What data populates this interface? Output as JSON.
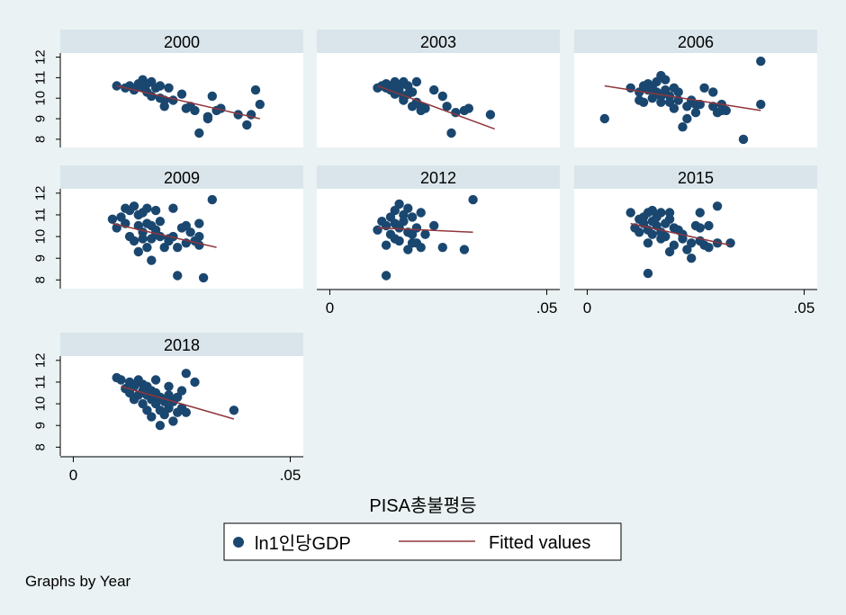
{
  "colors": {
    "background": "#eaf2f3",
    "panel": "#ffffff",
    "strip": "#d9e5eb",
    "marker": "#1a476f",
    "fit_line": "#90353b",
    "axis": "#000000"
  },
  "chart_data": {
    "type": "scatter",
    "xlabel": "PISA총불평등",
    "ylabel": "",
    "x_ticks": [
      "0",
      ".05"
    ],
    "x_tick_values": [
      0,
      0.05
    ],
    "y_ticks": [
      "8",
      "9",
      "10",
      "11",
      "12"
    ],
    "y_tick_values": [
      8,
      9,
      10,
      11,
      12
    ],
    "xlim": [
      -0.003,
      0.053
    ],
    "ylim": [
      7.6,
      12.2
    ],
    "legend": {
      "position": "bottom",
      "entries": [
        "ln1인당GDP",
        "Fitted values"
      ]
    },
    "note": "Graphs by Year",
    "panels": [
      {
        "title": "2000",
        "points": [
          [
            0.01,
            10.6
          ],
          [
            0.012,
            10.5
          ],
          [
            0.013,
            10.6
          ],
          [
            0.014,
            10.4
          ],
          [
            0.015,
            10.7
          ],
          [
            0.016,
            10.9
          ],
          [
            0.016,
            10.5
          ],
          [
            0.017,
            10.7
          ],
          [
            0.017,
            10.3
          ],
          [
            0.018,
            10.8
          ],
          [
            0.018,
            10.1
          ],
          [
            0.019,
            10.5
          ],
          [
            0.02,
            10.6
          ],
          [
            0.02,
            10.0
          ],
          [
            0.021,
            9.9
          ],
          [
            0.021,
            9.6
          ],
          [
            0.022,
            10.5
          ],
          [
            0.023,
            9.9
          ],
          [
            0.025,
            10.2
          ],
          [
            0.026,
            9.5
          ],
          [
            0.027,
            9.6
          ],
          [
            0.028,
            9.4
          ],
          [
            0.029,
            8.3
          ],
          [
            0.031,
            9.1
          ],
          [
            0.031,
            9.0
          ],
          [
            0.032,
            10.1
          ],
          [
            0.033,
            9.4
          ],
          [
            0.034,
            9.5
          ],
          [
            0.038,
            9.2
          ],
          [
            0.04,
            8.7
          ],
          [
            0.041,
            9.2
          ],
          [
            0.042,
            10.4
          ],
          [
            0.043,
            9.7
          ]
        ],
        "fit": [
          [
            0.01,
            10.6
          ],
          [
            0.043,
            9.0
          ]
        ]
      },
      {
        "title": "2003",
        "points": [
          [
            0.011,
            10.5
          ],
          [
            0.012,
            10.6
          ],
          [
            0.013,
            10.5
          ],
          [
            0.013,
            10.7
          ],
          [
            0.014,
            10.4
          ],
          [
            0.014,
            10.6
          ],
          [
            0.015,
            10.8
          ],
          [
            0.015,
            10.2
          ],
          [
            0.016,
            10.5
          ],
          [
            0.016,
            10.3
          ],
          [
            0.017,
            10.8
          ],
          [
            0.017,
            10.0
          ],
          [
            0.017,
            9.9
          ],
          [
            0.018,
            10.6
          ],
          [
            0.018,
            10.2
          ],
          [
            0.019,
            10.3
          ],
          [
            0.019,
            9.6
          ],
          [
            0.02,
            10.8
          ],
          [
            0.02,
            9.8
          ],
          [
            0.021,
            9.6
          ],
          [
            0.021,
            9.4
          ],
          [
            0.022,
            9.5
          ],
          [
            0.024,
            10.4
          ],
          [
            0.026,
            10.1
          ],
          [
            0.027,
            9.6
          ],
          [
            0.028,
            8.3
          ],
          [
            0.029,
            9.3
          ],
          [
            0.031,
            9.4
          ],
          [
            0.032,
            9.5
          ],
          [
            0.037,
            9.2
          ]
        ],
        "fit": [
          [
            0.011,
            10.6
          ],
          [
            0.038,
            8.5
          ]
        ]
      },
      {
        "title": "2006",
        "points": [
          [
            0.004,
            9.0
          ],
          [
            0.01,
            10.5
          ],
          [
            0.012,
            10.3
          ],
          [
            0.012,
            9.9
          ],
          [
            0.013,
            10.6
          ],
          [
            0.013,
            9.8
          ],
          [
            0.014,
            10.4
          ],
          [
            0.014,
            10.7
          ],
          [
            0.015,
            10.5
          ],
          [
            0.015,
            10.0
          ],
          [
            0.016,
            10.3
          ],
          [
            0.016,
            10.8
          ],
          [
            0.017,
            10.1
          ],
          [
            0.017,
            9.8
          ],
          [
            0.017,
            11.1
          ],
          [
            0.018,
            10.4
          ],
          [
            0.018,
            10.9
          ],
          [
            0.019,
            10.1
          ],
          [
            0.019,
            9.8
          ],
          [
            0.02,
            10.5
          ],
          [
            0.02,
            9.5
          ],
          [
            0.021,
            9.9
          ],
          [
            0.021,
            10.3
          ],
          [
            0.022,
            8.6
          ],
          [
            0.023,
            9.6
          ],
          [
            0.023,
            9.0
          ],
          [
            0.024,
            9.9
          ],
          [
            0.025,
            9.7
          ],
          [
            0.025,
            9.3
          ],
          [
            0.026,
            9.7
          ],
          [
            0.027,
            10.5
          ],
          [
            0.029,
            10.3
          ],
          [
            0.029,
            9.6
          ],
          [
            0.03,
            9.3
          ],
          [
            0.031,
            9.7
          ],
          [
            0.031,
            9.4
          ],
          [
            0.032,
            9.4
          ],
          [
            0.036,
            8.0
          ],
          [
            0.04,
            11.8
          ],
          [
            0.04,
            9.7
          ]
        ],
        "fit": [
          [
            0.004,
            10.6
          ],
          [
            0.04,
            9.4
          ]
        ]
      },
      {
        "title": "2009",
        "points": [
          [
            0.009,
            10.8
          ],
          [
            0.01,
            10.4
          ],
          [
            0.011,
            10.9
          ],
          [
            0.012,
            11.3
          ],
          [
            0.012,
            10.6
          ],
          [
            0.013,
            11.2
          ],
          [
            0.013,
            10.0
          ],
          [
            0.014,
            11.4
          ],
          [
            0.014,
            9.8
          ],
          [
            0.015,
            10.5
          ],
          [
            0.015,
            11.0
          ],
          [
            0.015,
            9.3
          ],
          [
            0.016,
            10.2
          ],
          [
            0.016,
            9.9
          ],
          [
            0.016,
            11.1
          ],
          [
            0.017,
            10.6
          ],
          [
            0.017,
            9.5
          ],
          [
            0.017,
            11.3
          ],
          [
            0.018,
            10.5
          ],
          [
            0.018,
            9.9
          ],
          [
            0.018,
            8.9
          ],
          [
            0.019,
            10.3
          ],
          [
            0.019,
            10.1
          ],
          [
            0.019,
            11.2
          ],
          [
            0.02,
            10.7
          ],
          [
            0.02,
            10.0
          ],
          [
            0.021,
            9.5
          ],
          [
            0.022,
            9.9
          ],
          [
            0.022,
            9.8
          ],
          [
            0.023,
            10.0
          ],
          [
            0.023,
            11.3
          ],
          [
            0.024,
            9.5
          ],
          [
            0.024,
            8.2
          ],
          [
            0.025,
            10.4
          ],
          [
            0.026,
            9.7
          ],
          [
            0.026,
            10.5
          ],
          [
            0.027,
            10.2
          ],
          [
            0.028,
            9.8
          ],
          [
            0.029,
            10.6
          ],
          [
            0.029,
            10.0
          ],
          [
            0.029,
            9.6
          ],
          [
            0.03,
            8.1
          ],
          [
            0.032,
            11.7
          ]
        ],
        "fit": [
          [
            0.009,
            10.6
          ],
          [
            0.033,
            9.5
          ]
        ]
      },
      {
        "title": "2012",
        "points": [
          [
            0.011,
            10.3
          ],
          [
            0.012,
            10.7
          ],
          [
            0.013,
            10.5
          ],
          [
            0.013,
            9.6
          ],
          [
            0.013,
            8.2
          ],
          [
            0.014,
            10.1
          ],
          [
            0.014,
            10.9
          ],
          [
            0.015,
            10.6
          ],
          [
            0.015,
            11.2
          ],
          [
            0.015,
            9.9
          ],
          [
            0.016,
            11.5
          ],
          [
            0.016,
            10.4
          ],
          [
            0.016,
            9.8
          ],
          [
            0.017,
            11.0
          ],
          [
            0.017,
            10.7
          ],
          [
            0.018,
            10.2
          ],
          [
            0.018,
            9.4
          ],
          [
            0.018,
            11.3
          ],
          [
            0.019,
            10.9
          ],
          [
            0.019,
            10.1
          ],
          [
            0.019,
            9.7
          ],
          [
            0.02,
            9.7
          ],
          [
            0.02,
            10.4
          ],
          [
            0.021,
            11.1
          ],
          [
            0.021,
            9.5
          ],
          [
            0.022,
            10.1
          ],
          [
            0.024,
            10.5
          ],
          [
            0.026,
            9.5
          ],
          [
            0.031,
            9.4
          ],
          [
            0.033,
            11.7
          ]
        ],
        "fit": [
          [
            0.011,
            10.4
          ],
          [
            0.033,
            10.2
          ]
        ]
      },
      {
        "title": "2015",
        "points": [
          [
            0.01,
            11.1
          ],
          [
            0.011,
            10.4
          ],
          [
            0.012,
            10.8
          ],
          [
            0.012,
            10.2
          ],
          [
            0.013,
            10.6
          ],
          [
            0.013,
            10.9
          ],
          [
            0.014,
            11.1
          ],
          [
            0.014,
            10.3
          ],
          [
            0.014,
            9.7
          ],
          [
            0.014,
            8.3
          ],
          [
            0.015,
            10.7
          ],
          [
            0.015,
            10.1
          ],
          [
            0.015,
            11.2
          ],
          [
            0.016,
            10.5
          ],
          [
            0.016,
            10.9
          ],
          [
            0.017,
            10.2
          ],
          [
            0.017,
            9.9
          ],
          [
            0.017,
            11.1
          ],
          [
            0.018,
            10.6
          ],
          [
            0.018,
            10.0
          ],
          [
            0.019,
            10.8
          ],
          [
            0.019,
            9.3
          ],
          [
            0.019,
            11.1
          ],
          [
            0.02,
            10.4
          ],
          [
            0.02,
            9.6
          ],
          [
            0.021,
            10.3
          ],
          [
            0.022,
            10.1
          ],
          [
            0.022,
            9.9
          ],
          [
            0.023,
            9.4
          ],
          [
            0.024,
            9.0
          ],
          [
            0.024,
            9.7
          ],
          [
            0.025,
            10.5
          ],
          [
            0.026,
            10.4
          ],
          [
            0.026,
            9.8
          ],
          [
            0.026,
            11.1
          ],
          [
            0.027,
            9.6
          ],
          [
            0.028,
            9.5
          ],
          [
            0.028,
            10.5
          ],
          [
            0.03,
            9.7
          ],
          [
            0.03,
            11.4
          ],
          [
            0.033,
            9.7
          ]
        ],
        "fit": [
          [
            0.01,
            10.6
          ],
          [
            0.033,
            9.6
          ]
        ]
      },
      {
        "title": "2018",
        "points": [
          [
            0.01,
            11.2
          ],
          [
            0.011,
            11.1
          ],
          [
            0.012,
            10.7
          ],
          [
            0.013,
            10.5
          ],
          [
            0.013,
            11.0
          ],
          [
            0.014,
            10.2
          ],
          [
            0.014,
            10.8
          ],
          [
            0.015,
            10.4
          ],
          [
            0.015,
            11.1
          ],
          [
            0.016,
            10.6
          ],
          [
            0.016,
            10.0
          ],
          [
            0.016,
            10.9
          ],
          [
            0.017,
            10.4
          ],
          [
            0.017,
            9.7
          ],
          [
            0.017,
            10.8
          ],
          [
            0.018,
            10.2
          ],
          [
            0.018,
            10.6
          ],
          [
            0.018,
            9.4
          ],
          [
            0.019,
            10.5
          ],
          [
            0.019,
            10.0
          ],
          [
            0.019,
            11.1
          ],
          [
            0.02,
            10.3
          ],
          [
            0.02,
            9.7
          ],
          [
            0.02,
            9.0
          ],
          [
            0.021,
            10.1
          ],
          [
            0.021,
            9.5
          ],
          [
            0.022,
            10.4
          ],
          [
            0.022,
            9.8
          ],
          [
            0.022,
            10.8
          ],
          [
            0.023,
            9.2
          ],
          [
            0.023,
            10.1
          ],
          [
            0.024,
            9.6
          ],
          [
            0.024,
            10.3
          ],
          [
            0.025,
            10.6
          ],
          [
            0.025,
            9.8
          ],
          [
            0.026,
            11.4
          ],
          [
            0.026,
            9.6
          ],
          [
            0.028,
            11.0
          ],
          [
            0.037,
            9.7
          ]
        ],
        "fit": [
          [
            0.011,
            10.8
          ],
          [
            0.037,
            9.3
          ]
        ]
      }
    ]
  }
}
